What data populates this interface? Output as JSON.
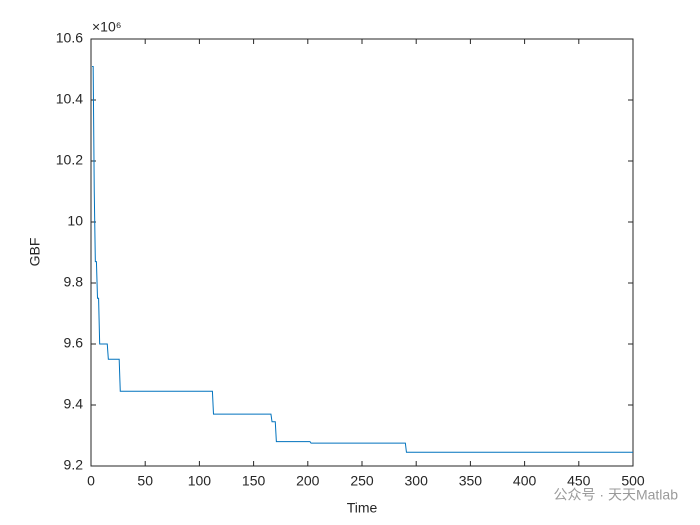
{
  "chart_data": {
    "type": "line",
    "x_label": "Time",
    "y_label": "GBF",
    "y_exponent_label": "×10⁶",
    "watermark": "公众号 · 天天Matlab",
    "x": [
      1,
      2,
      3,
      4,
      5,
      6,
      7,
      8,
      15,
      16,
      26,
      27,
      112,
      113,
      166,
      167,
      170,
      171,
      202,
      203,
      290,
      291,
      500
    ],
    "series": [
      {
        "name": "GBF",
        "color": "#0072bd",
        "values": [
          10.51,
          10.51,
          10.1,
          9.87,
          9.87,
          9.75,
          9.75,
          9.6,
          9.6,
          9.55,
          9.55,
          9.445,
          9.445,
          9.37,
          9.37,
          9.345,
          9.345,
          9.28,
          9.28,
          9.275,
          9.275,
          9.245,
          9.245
        ]
      }
    ],
    "xlim": [
      0,
      500
    ],
    "xticks": [
      0,
      50,
      100,
      150,
      200,
      250,
      300,
      350,
      400,
      450,
      500
    ],
    "ylim": [
      9.2,
      10.6
    ],
    "yticks": [
      9.2,
      9.4,
      9.6,
      9.8,
      10,
      10.2,
      10.4,
      10.6
    ],
    "grid": false,
    "box": true
  }
}
